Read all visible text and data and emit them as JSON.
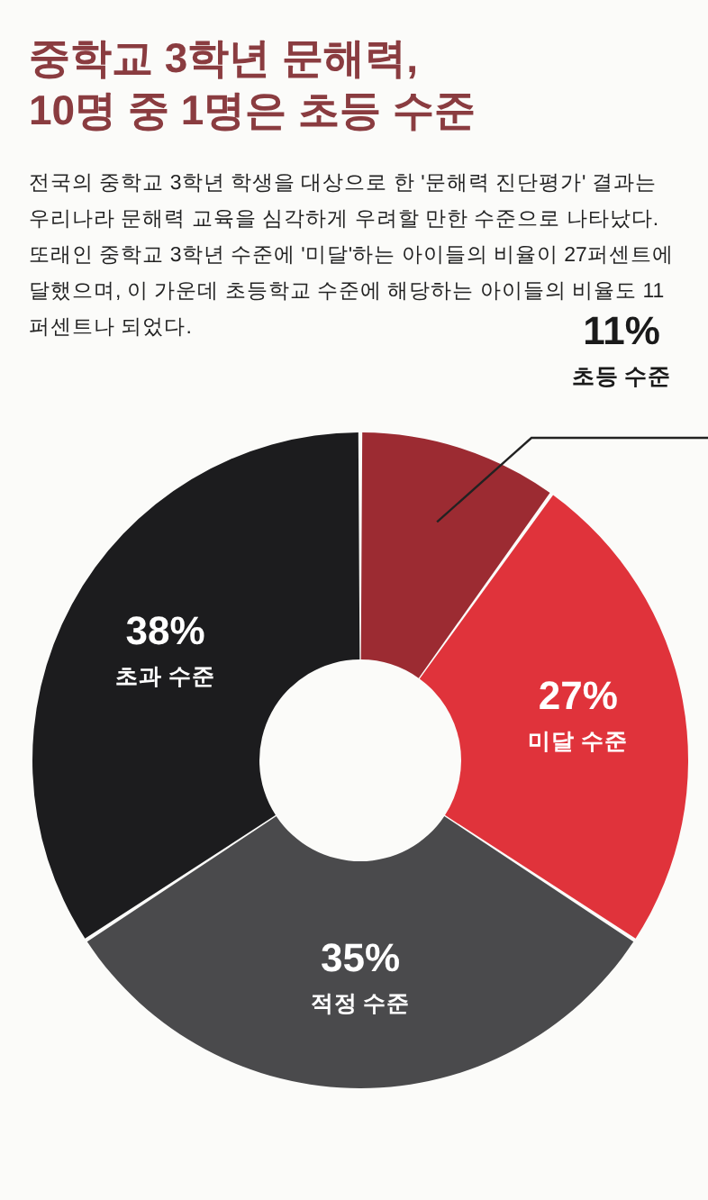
{
  "chart_data": {
    "type": "donut",
    "title": "중학교 3학년 문해력,\n10명 중 1명은 초등 수준",
    "subtitle": "전국의 중학교 3학년 학생을 대상으로 한 '문해력 진단평가' 결과는 우리나라 문해력 교육을 심각하게 우려할 만한 수준으로 나타났다. 또래인 중학교 3학년 수준에 '미달'하는 아이들의 비율이 27퍼센트에 달했으며, 이 가운데 초등학교 수준에 해당하는 아이들의 비율도 11퍼센트나 되었다.",
    "categories": [
      "초등 수준",
      "미달 수준",
      "적정 수준",
      "초과 수준"
    ],
    "values": [
      11,
      27,
      35,
      38
    ],
    "value_labels": [
      "11%",
      "27%",
      "35%",
      "38%"
    ],
    "colors": [
      "#9c2b32",
      "#e0333b",
      "#4a4a4c",
      "#1c1c1e"
    ],
    "legend": false
  }
}
